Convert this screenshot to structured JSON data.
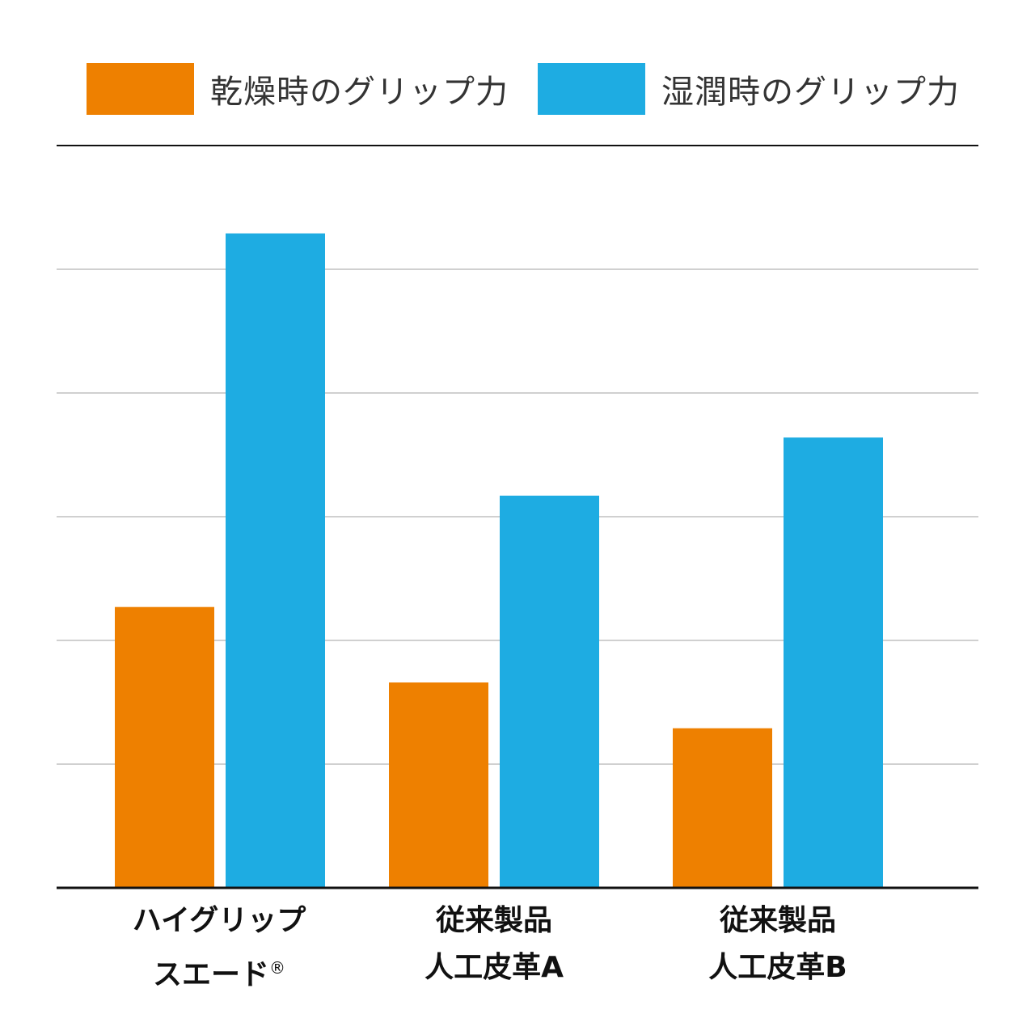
{
  "chart_data": {
    "type": "bar",
    "title": "",
    "xlabel": "",
    "ylabel": "",
    "ylim": [
      0,
      6
    ],
    "grid": true,
    "legend_position": "top",
    "categories": [
      {
        "line1": "ハイグリップ",
        "line2": "スエード",
        "mark": "®"
      },
      {
        "line1": "従来製品",
        "line2": "人工皮革A",
        "mark": ""
      },
      {
        "line1": "従来製品",
        "line2": "人工皮革B",
        "mark": ""
      }
    ],
    "series": [
      {
        "name": "乾燥時のグリップ力",
        "color": "#ee8000",
        "values": [
          2.27,
          1.66,
          1.29
        ]
      },
      {
        "name": "湿潤時のグリップ力",
        "color": "#1eace2",
        "values": [
          5.29,
          3.17,
          3.64
        ]
      }
    ]
  }
}
